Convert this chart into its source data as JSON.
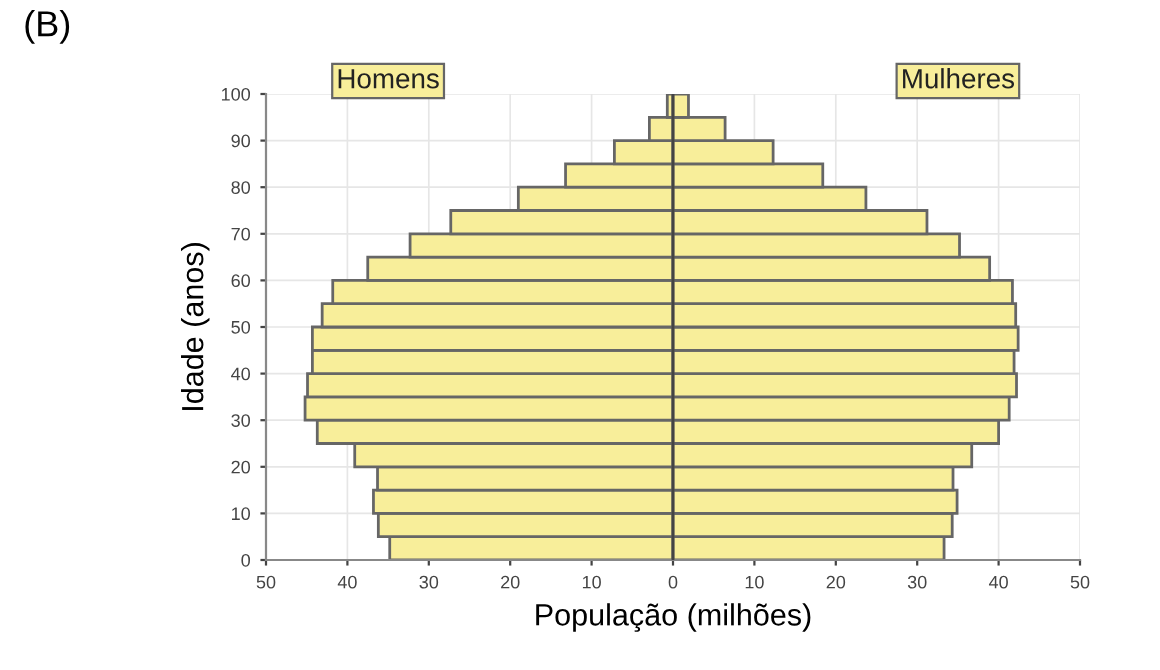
{
  "chart_data": {
    "type": "bar",
    "orientation": "horizontal",
    "xlabel": "População (milhões)",
    "ylabel": "Idade (anos)",
    "annotations": [
      "(B)"
    ],
    "x": [
      2.5,
      7.5,
      12.5,
      17.5,
      22.5,
      27.5,
      32.5,
      37.5,
      42.5,
      47.5,
      52.5,
      57.5,
      62.5,
      67.5,
      72.5,
      77.5,
      82.5,
      87.5,
      92.5,
      97.5
    ],
    "series": [
      {
        "name": "Homens",
        "color": "#f8ee9a",
        "values": [
          -34.8,
          -36.2,
          -36.8,
          -36.3,
          -39.1,
          -43.7,
          -45.2,
          -44.9,
          -44.3,
          -44.3,
          -43.1,
          -41.8,
          -37.5,
          -32.3,
          -27.3,
          -19.0,
          -13.2,
          -7.2,
          -2.9,
          -0.7
        ]
      },
      {
        "name": "Mulheres",
        "color": "#f8ee9a",
        "values": [
          33.3,
          34.3,
          34.9,
          34.4,
          36.7,
          40.0,
          41.3,
          42.2,
          41.9,
          42.4,
          42.1,
          41.7,
          38.9,
          35.2,
          31.2,
          23.7,
          18.4,
          12.3,
          6.4,
          1.9
        ]
      }
    ],
    "xlim": [
      -50,
      50
    ],
    "xticks": [
      {
        "value": -50,
        "label": "50"
      },
      {
        "value": -40,
        "label": "40"
      },
      {
        "value": -30,
        "label": "30"
      },
      {
        "value": -20,
        "label": "20"
      },
      {
        "value": -10,
        "label": "10"
      },
      0,
      10,
      20,
      30,
      40,
      50
    ],
    "ylim": [
      0,
      100
    ],
    "yticks": [
      0,
      10,
      20,
      30,
      40,
      50,
      60,
      70,
      80,
      90,
      100
    ],
    "grid": true,
    "legend": false,
    "stacked": true
  }
}
